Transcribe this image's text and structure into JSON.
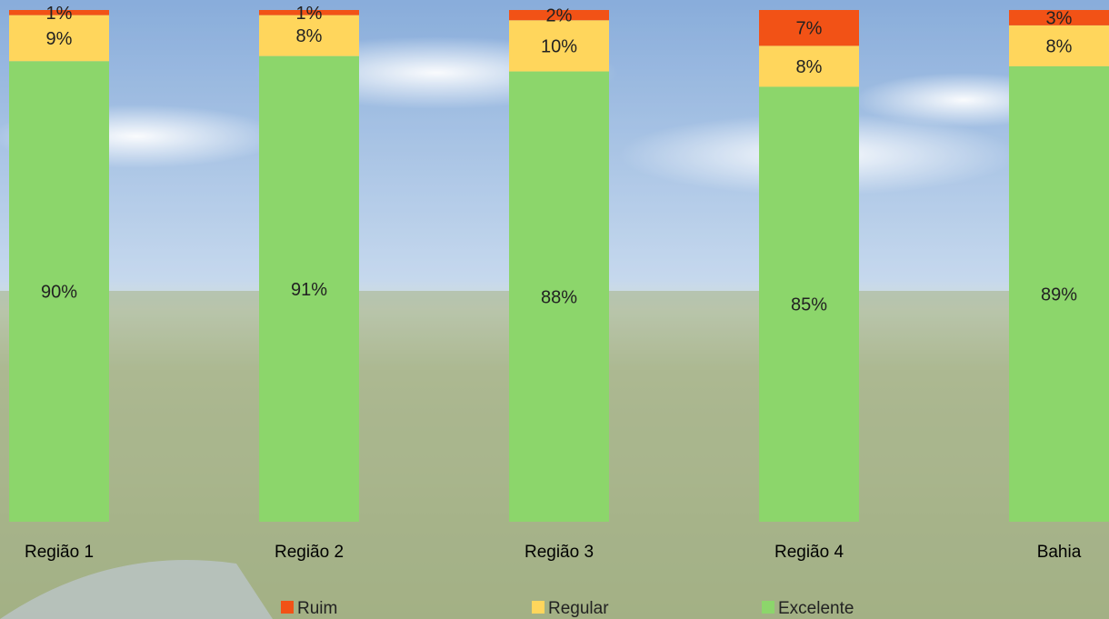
{
  "chart_data": {
    "type": "bar",
    "stacked": true,
    "categories": [
      "Região 1",
      "Região 2",
      "Região 3",
      "Região 4",
      "Bahia"
    ],
    "series": [
      {
        "name": "Excelente",
        "color": "#8cd66b",
        "values": [
          90,
          91,
          88,
          85,
          89
        ],
        "labels": [
          "90%",
          "91%",
          "88%",
          "85%",
          "89%"
        ]
      },
      {
        "name": "Regular",
        "color": "#ffd65c",
        "values": [
          9,
          8,
          10,
          8,
          8
        ],
        "labels": [
          "9%",
          "8%",
          "10%",
          "8%",
          "8%"
        ]
      },
      {
        "name": "Ruim",
        "color": "#f25216",
        "values": [
          1,
          1,
          2,
          7,
          3
        ],
        "labels": [
          "1%",
          "1%",
          "2%",
          "7%",
          "3%"
        ]
      }
    ],
    "legend": {
      "position": "bottom",
      "order": [
        "Ruim",
        "Regular",
        "Excelente"
      ]
    }
  }
}
